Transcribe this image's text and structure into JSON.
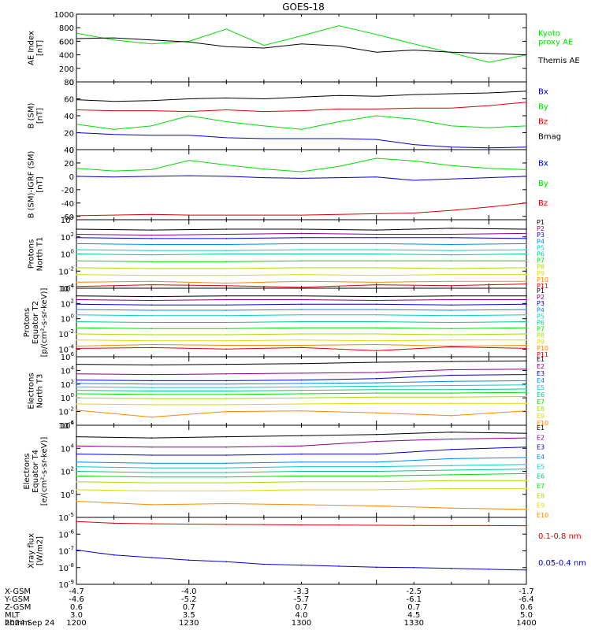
{
  "title": "GOES-18",
  "date": "2024 Sep 24",
  "colors": {
    "black": "#000000",
    "green": "#00dd00",
    "blue": "#0000cc",
    "red": "#dd0000",
    "spectrum": [
      "#000000",
      "#880088",
      "#0000cc",
      "#0088ff",
      "#00cccc",
      "#00cc88",
      "#00dd00",
      "#aadd00",
      "#dddd00",
      "#ff8800",
      "#dd0000"
    ]
  },
  "time_axis": {
    "rows": [
      {
        "label": "X-GSM",
        "values": [
          "-4.7",
          "-4.0",
          "-3.3",
          "-2.5",
          "-1.7"
        ]
      },
      {
        "label": "Y-GSM",
        "values": [
          "-4.6",
          "-5.2",
          "-5.7",
          "-6.1",
          "-6.4"
        ]
      },
      {
        "label": "Z-GSM",
        "values": [
          "0.6",
          "0.7",
          "0.7",
          "0.7",
          "0.6"
        ]
      },
      {
        "label": "MLT",
        "values": [
          "3.0",
          "3.5",
          "4.0",
          "4.5",
          "5.0"
        ]
      },
      {
        "label": "hhmm",
        "values": [
          "1200",
          "1230",
          "1300",
          "1330",
          "1400"
        ]
      }
    ]
  },
  "chart_data": [
    {
      "id": "ae",
      "type": "line",
      "ylabel_lines": [
        "AE Index",
        "[nT]"
      ],
      "ylim": [
        0,
        1000
      ],
      "yticks": [
        0,
        200,
        400,
        600,
        800,
        1000
      ],
      "yticklabels": [
        "0",
        "200",
        "400",
        "600",
        "800",
        "1000"
      ],
      "x": [
        1200,
        1210,
        1220,
        1230,
        1240,
        1250,
        1300,
        1310,
        1320,
        1330,
        1340,
        1350,
        1400
      ],
      "series": [
        {
          "name": "Kyoto proxy AE",
          "color": "green",
          "values": [
            720,
            620,
            560,
            600,
            780,
            540,
            680,
            830,
            700,
            560,
            430,
            290,
            400
          ]
        },
        {
          "name": "Themis AE",
          "color": "black",
          "values": [
            640,
            650,
            620,
            590,
            520,
            500,
            560,
            530,
            440,
            470,
            440,
            420,
            400
          ]
        }
      ],
      "legend": [
        {
          "lines": [
            "Kyoto",
            "proxy AE"
          ],
          "color": "green"
        },
        {
          "lines": [
            "Themis AE"
          ],
          "color": "black"
        }
      ]
    },
    {
      "id": "bsm",
      "type": "line",
      "ylabel_lines": [
        "B (SM)",
        "[nT]"
      ],
      "ylim": [
        0,
        80
      ],
      "yticks": [
        0,
        20,
        40,
        60,
        80
      ],
      "yticklabels": [
        "0",
        "20",
        "40",
        "60",
        "80"
      ],
      "x": [
        1200,
        1210,
        1220,
        1230,
        1240,
        1250,
        1300,
        1310,
        1320,
        1330,
        1340,
        1350,
        1400
      ],
      "series": [
        {
          "name": "Bmag",
          "color": "black",
          "values": [
            59,
            57,
            58,
            60,
            61,
            60,
            62,
            64,
            63,
            65,
            66,
            67,
            69
          ]
        },
        {
          "name": "Bz",
          "color": "red",
          "values": [
            47,
            46,
            46,
            45,
            47,
            45,
            46,
            48,
            48,
            49,
            49,
            52,
            56
          ]
        },
        {
          "name": "By",
          "color": "green",
          "values": [
            30,
            24,
            28,
            40,
            33,
            28,
            24,
            33,
            40,
            36,
            28,
            26,
            28
          ]
        },
        {
          "name": "Bx",
          "color": "blue",
          "values": [
            20,
            18,
            17,
            17,
            14,
            13,
            13,
            13,
            12,
            6,
            3,
            2,
            3
          ]
        }
      ],
      "legend": [
        {
          "lines": [
            "Bx"
          ],
          "color": "blue"
        },
        {
          "lines": [
            "By"
          ],
          "color": "green"
        },
        {
          "lines": [
            "Bz"
          ],
          "color": "red"
        },
        {
          "lines": [
            "Bmag"
          ],
          "color": "black"
        }
      ]
    },
    {
      "id": "bigrf",
      "type": "line",
      "ylabel_lines": [
        "B (SM)-IGRF (SM)",
        "[nT]"
      ],
      "ylim": [
        -65,
        40
      ],
      "yticks": [
        -60,
        -40,
        -20,
        0,
        20,
        40
      ],
      "yticklabels": [
        "-60",
        "-40",
        "-20",
        "0",
        "20",
        "40"
      ],
      "x": [
        1200,
        1210,
        1220,
        1230,
        1240,
        1250,
        1300,
        1310,
        1320,
        1330,
        1340,
        1350,
        1400
      ],
      "series": [
        {
          "name": "By",
          "color": "green",
          "values": [
            12,
            8,
            10,
            24,
            17,
            11,
            7,
            15,
            27,
            23,
            16,
            12,
            10
          ]
        },
        {
          "name": "Bx",
          "color": "blue",
          "values": [
            0,
            -1,
            0,
            1,
            0,
            -2,
            -3,
            -2,
            -1,
            -6,
            -4,
            -2,
            0
          ]
        },
        {
          "name": "Bz",
          "color": "red",
          "values": [
            -59,
            -58,
            -57,
            -58,
            -58,
            -58,
            -58,
            -57,
            -56,
            -55,
            -51,
            -46,
            -40
          ]
        }
      ],
      "legend": [
        {
          "lines": [
            "Bx"
          ],
          "color": "blue"
        },
        {
          "lines": [
            "By"
          ],
          "color": "green"
        },
        {
          "lines": [
            "Bz"
          ],
          "color": "red"
        }
      ]
    },
    {
      "id": "pn",
      "type": "line",
      "ylog": true,
      "ylabel_lines": [
        "Protons",
        "North T1"
      ],
      "ylim_exp": [
        -4,
        4
      ],
      "yticks_exp": [
        -4,
        -2,
        0,
        2,
        4
      ],
      "x": [
        1200,
        1220,
        1240,
        1300,
        1320,
        1340,
        1400
      ],
      "series_style": "spectrum",
      "series": [
        {
          "name": "P1",
          "values_exp": [
            2.9,
            2.8,
            2.9,
            2.9,
            2.8,
            3.0,
            2.9
          ]
        },
        {
          "name": "P2",
          "values_exp": [
            2.3,
            2.2,
            2.3,
            2.4,
            2.3,
            2.3,
            2.4
          ]
        },
        {
          "name": "P3",
          "values_exp": [
            1.9,
            1.8,
            1.8,
            1.9,
            1.9,
            1.9,
            1.8
          ]
        },
        {
          "name": "P4",
          "values_exp": [
            1.2,
            1.1,
            1.1,
            1.2,
            1.2,
            1.1,
            1.2
          ]
        },
        {
          "name": "P5",
          "values_exp": [
            0.5,
            0.4,
            0.4,
            0.5,
            0.5,
            0.4,
            0.5
          ]
        },
        {
          "name": "P6",
          "values_exp": [
            0.0,
            -0.1,
            0.0,
            0.0,
            0.0,
            -0.1,
            0.0
          ]
        },
        {
          "name": "P7",
          "values_exp": [
            -0.8,
            -0.9,
            -0.9,
            -0.8,
            -0.8,
            -0.8,
            -0.8
          ]
        },
        {
          "name": "P8",
          "values_exp": [
            -1.6,
            -1.7,
            -1.7,
            -1.6,
            -1.6,
            -1.7,
            -1.6
          ]
        },
        {
          "name": "P9",
          "values_exp": [
            -2.4,
            -2.5,
            -2.5,
            -2.4,
            -2.5,
            -2.4,
            -2.4
          ]
        },
        {
          "name": "P10",
          "values_exp": [
            -3.3,
            -3.2,
            -3.4,
            -3.2,
            -3.3,
            -3.2,
            -3.2
          ]
        },
        {
          "name": "P11",
          "values_exp": [
            -3.8,
            -3.6,
            -3.7,
            -3.9,
            -3.6,
            -3.7,
            -3.5
          ]
        }
      ]
    },
    {
      "id": "pe",
      "type": "line",
      "ylog": true,
      "ylabel_lines": [
        "Protons",
        "Equator T2",
        "[p/(cm²-s-sr-keV)]"
      ],
      "ylim_exp": [
        -5,
        4
      ],
      "yticks_exp": [
        -4,
        -2,
        0,
        2,
        4
      ],
      "x": [
        1200,
        1220,
        1240,
        1300,
        1320,
        1340,
        1400
      ],
      "series_style": "spectrum",
      "series": [
        {
          "name": "P1",
          "values_exp": [
            3.0,
            2.9,
            3.0,
            3.0,
            2.9,
            3.0,
            3.0
          ]
        },
        {
          "name": "P2",
          "values_exp": [
            2.5,
            2.4,
            2.5,
            2.5,
            2.4,
            2.5,
            2.5
          ]
        },
        {
          "name": "P3",
          "values_exp": [
            1.9,
            1.8,
            1.8,
            1.9,
            1.9,
            1.8,
            1.9
          ]
        },
        {
          "name": "P4",
          "values_exp": [
            1.2,
            1.1,
            1.1,
            1.2,
            1.2,
            1.1,
            1.2
          ]
        },
        {
          "name": "P5",
          "values_exp": [
            0.5,
            0.4,
            0.4,
            0.5,
            0.5,
            0.4,
            0.5
          ]
        },
        {
          "name": "P6",
          "values_exp": [
            -0.4,
            -0.5,
            -0.5,
            -0.4,
            -0.4,
            -0.5,
            -0.4
          ]
        },
        {
          "name": "P7",
          "values_exp": [
            -1.2,
            -1.3,
            -1.3,
            -1.2,
            -1.2,
            -1.3,
            -1.2
          ]
        },
        {
          "name": "P8",
          "values_exp": [
            -2.0,
            -2.1,
            -2.1,
            -2.0,
            -2.0,
            -2.1,
            -2.0
          ]
        },
        {
          "name": "P9",
          "values_exp": [
            -2.8,
            -2.9,
            -2.9,
            -2.8,
            -2.9,
            -2.8,
            -2.8
          ]
        },
        {
          "name": "P10",
          "values_exp": [
            -3.6,
            -3.4,
            -3.5,
            -3.5,
            -3.4,
            -3.6,
            -3.5
          ]
        },
        {
          "name": "P11",
          "values_exp": [
            -3.9,
            -3.8,
            -4.0,
            -3.8,
            -4.2,
            -3.7,
            -3.9
          ]
        }
      ]
    },
    {
      "id": "en",
      "type": "line",
      "ylog": true,
      "ylabel_lines": [
        "Electrons",
        "North T3"
      ],
      "ylim_exp": [
        -4,
        6
      ],
      "yticks_exp": [
        -4,
        -2,
        0,
        2,
        4,
        6
      ],
      "x": [
        1200,
        1220,
        1240,
        1300,
        1320,
        1340,
        1400
      ],
      "series_style": "spectrum",
      "series": [
        {
          "name": "E1",
          "values_exp": [
            4.9,
            4.8,
            4.9,
            5.0,
            5.2,
            5.3,
            5.4
          ]
        },
        {
          "name": "E2",
          "values_exp": [
            3.5,
            3.4,
            3.5,
            3.6,
            3.7,
            4.1,
            4.2
          ]
        },
        {
          "name": "E3",
          "values_exp": [
            2.6,
            2.5,
            2.5,
            2.6,
            2.8,
            3.3,
            3.4
          ]
        },
        {
          "name": "E4",
          "values_exp": [
            2.1,
            2.0,
            2.0,
            2.1,
            2.2,
            2.4,
            2.5
          ]
        },
        {
          "name": "E5",
          "values_exp": [
            1.6,
            1.5,
            1.5,
            1.6,
            1.7,
            1.8,
            1.9
          ]
        },
        {
          "name": "E6",
          "values_exp": [
            1.1,
            1.0,
            1.0,
            1.1,
            1.2,
            1.2,
            1.3
          ]
        },
        {
          "name": "E7",
          "values_exp": [
            0.6,
            0.5,
            0.5,
            0.6,
            0.7,
            0.7,
            0.8
          ]
        },
        {
          "name": "E8",
          "values_exp": [
            0.0,
            -0.1,
            -0.1,
            0.0,
            0.1,
            0.1,
            0.2
          ]
        },
        {
          "name": "E9",
          "values_exp": [
            -0.9,
            -1.0,
            -1.0,
            -0.9,
            -0.8,
            -0.8,
            -0.8
          ]
        },
        {
          "name": "E10",
          "values_exp": [
            -1.8,
            -2.8,
            -2.0,
            -1.9,
            -2.2,
            -2.6,
            -1.9
          ]
        }
      ]
    },
    {
      "id": "ee",
      "type": "line",
      "ylog": true,
      "ylabel_lines": [
        "Electrons",
        "Equator T4",
        "[e/(cm²-s-sr-keV)]"
      ],
      "ylim_exp": [
        -2,
        6
      ],
      "yticks_exp": [
        0,
        2,
        4,
        6
      ],
      "x": [
        1200,
        1220,
        1240,
        1300,
        1320,
        1340,
        1400
      ],
      "series_style": "spectrum",
      "series": [
        {
          "name": "E1",
          "values_exp": [
            5.0,
            4.9,
            5.0,
            5.1,
            5.2,
            5.4,
            5.3
          ]
        },
        {
          "name": "E2",
          "values_exp": [
            4.2,
            4.1,
            4.1,
            4.2,
            4.6,
            4.8,
            4.9
          ]
        },
        {
          "name": "E3",
          "values_exp": [
            3.5,
            3.4,
            3.4,
            3.5,
            3.5,
            3.9,
            4.1
          ]
        },
        {
          "name": "E4",
          "values_exp": [
            2.8,
            2.7,
            2.7,
            2.8,
            2.8,
            3.1,
            3.2
          ]
        },
        {
          "name": "E5",
          "values_exp": [
            2.4,
            2.3,
            2.3,
            2.4,
            2.4,
            2.5,
            2.6
          ]
        },
        {
          "name": "E6",
          "values_exp": [
            2.0,
            1.9,
            1.9,
            2.0,
            2.0,
            2.1,
            2.2
          ]
        },
        {
          "name": "E7",
          "values_exp": [
            1.6,
            1.5,
            1.5,
            1.6,
            1.6,
            1.7,
            1.8
          ]
        },
        {
          "name": "E8",
          "values_exp": [
            1.1,
            1.0,
            1.0,
            1.1,
            1.1,
            1.2,
            1.2
          ]
        },
        {
          "name": "E9",
          "values_exp": [
            0.4,
            0.3,
            0.3,
            0.4,
            0.4,
            0.5,
            0.5
          ]
        },
        {
          "name": "E10",
          "values_exp": [
            -0.6,
            -0.9,
            -0.8,
            -0.9,
            -1.0,
            -1.2,
            -1.3
          ]
        }
      ]
    },
    {
      "id": "xray",
      "type": "line",
      "ylog": true,
      "ylabel_lines": [
        "Xray flux",
        "[W/m2]"
      ],
      "ylim_exp": [
        -9,
        -5
      ],
      "yticks_exp": [
        -9,
        -8,
        -7,
        -6,
        -5
      ],
      "x": [
        1200,
        1210,
        1220,
        1230,
        1240,
        1250,
        1300,
        1310,
        1320,
        1330,
        1340,
        1350,
        1400
      ],
      "series": [
        {
          "name": "0.1-0.8 nm",
          "color": "red",
          "values_exp": [
            -5.25,
            -5.35,
            -5.38,
            -5.4,
            -5.42,
            -5.43,
            -5.45,
            -5.46,
            -5.47,
            -5.48,
            -5.49,
            -5.49,
            -5.5
          ]
        },
        {
          "name": "0.05-0.4 nm",
          "color": "blue",
          "values_exp": [
            -6.95,
            -7.25,
            -7.4,
            -7.55,
            -7.65,
            -7.8,
            -7.85,
            -7.92,
            -7.98,
            -8.0,
            -8.05,
            -8.1,
            -8.15
          ]
        }
      ],
      "legend": [
        {
          "lines": [
            "0.1-0.8 nm"
          ],
          "color": "red"
        },
        {
          "lines": [
            "0.05-0.4 nm"
          ],
          "color": "blue"
        }
      ]
    }
  ]
}
